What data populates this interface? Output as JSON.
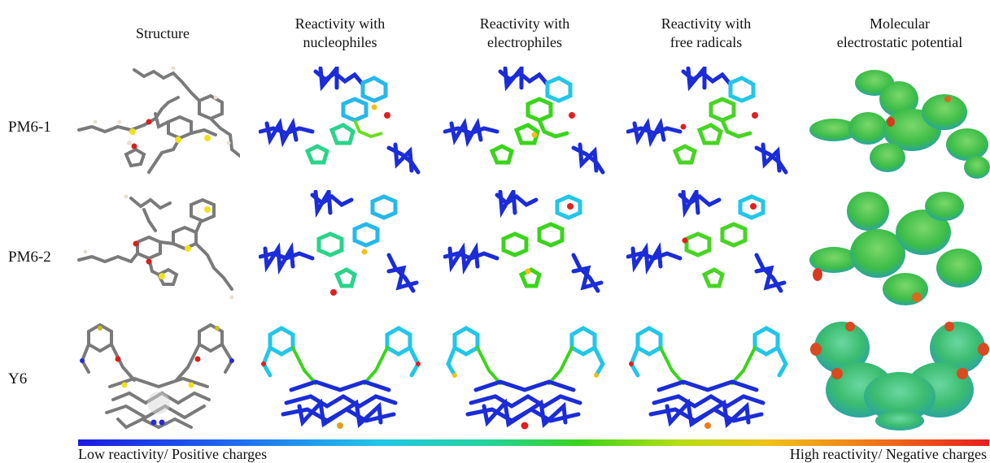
{
  "columns": [
    {
      "key": "structure",
      "lines": [
        "Structure"
      ]
    },
    {
      "key": "nucleophiles",
      "lines": [
        "Reactivity with",
        "nucleophiles"
      ]
    },
    {
      "key": "electrophiles",
      "lines": [
        "Reactivity with",
        "electrophiles"
      ]
    },
    {
      "key": "radicals",
      "lines": [
        "Reactivity with",
        "free radicals"
      ]
    },
    {
      "key": "mep",
      "lines": [
        "Molecular",
        "electrostatic potential"
      ]
    }
  ],
  "rows": [
    {
      "label": "PM6-1"
    },
    {
      "label": "PM6-2"
    },
    {
      "label": "Y6"
    }
  ],
  "scale": {
    "left_label": "Low reactivity/ Positive charges",
    "right_label": "High reactivity/ Negative charges",
    "colors": [
      "#1a1adf",
      "#22c6e8",
      "#3ad41c",
      "#f0c018",
      "#e81e1e"
    ]
  }
}
